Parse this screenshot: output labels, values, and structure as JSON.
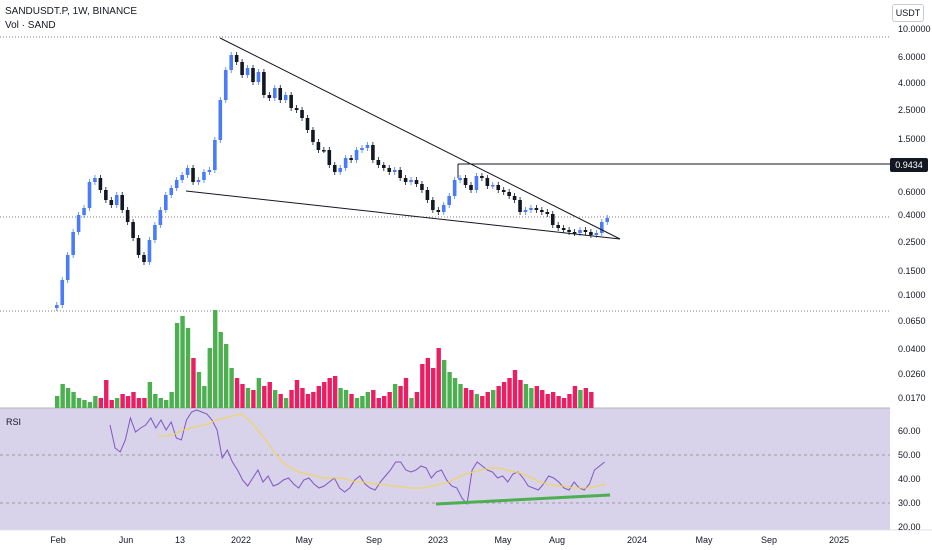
{
  "header": {
    "symbol_line": "SANDUSDT.P, 1W, BINANCE",
    "volume_line": "Vol · SAND",
    "currency": "USDT"
  },
  "price_axis": {
    "ticks": [
      "10.0000",
      "6.0000",
      "4.0000",
      "2.5000",
      "1.5000",
      "0.9434",
      "0.6000",
      "0.4000",
      "0.2500",
      "0.1500",
      "0.1000"
    ],
    "highlight_price": "0.9434"
  },
  "volume_axis": {
    "ticks": [
      "0.0650",
      "0.0400",
      "0.0260",
      "0.0170"
    ]
  },
  "rsi_panel": {
    "label": "RSI",
    "ticks": [
      "60.00",
      "50.00",
      "40.00",
      "30.00",
      "20.00"
    ]
  },
  "time_axis": {
    "labels": [
      "Feb",
      "Jun",
      "13",
      "2022",
      "May",
      "Sep",
      "2023",
      "May",
      "Aug",
      "2024",
      "May",
      "Sep",
      "2025"
    ]
  },
  "colors": {
    "bull": "#4a7cf7",
    "bear": "#131722",
    "vol_up": "#4caf50",
    "vol_down": "#e91e63",
    "rsi_line": "#7e57c2",
    "rsi_ma": "#f5d547",
    "rsi_bg": "#d8d2ea",
    "divergence": "#4caf50"
  }
}
